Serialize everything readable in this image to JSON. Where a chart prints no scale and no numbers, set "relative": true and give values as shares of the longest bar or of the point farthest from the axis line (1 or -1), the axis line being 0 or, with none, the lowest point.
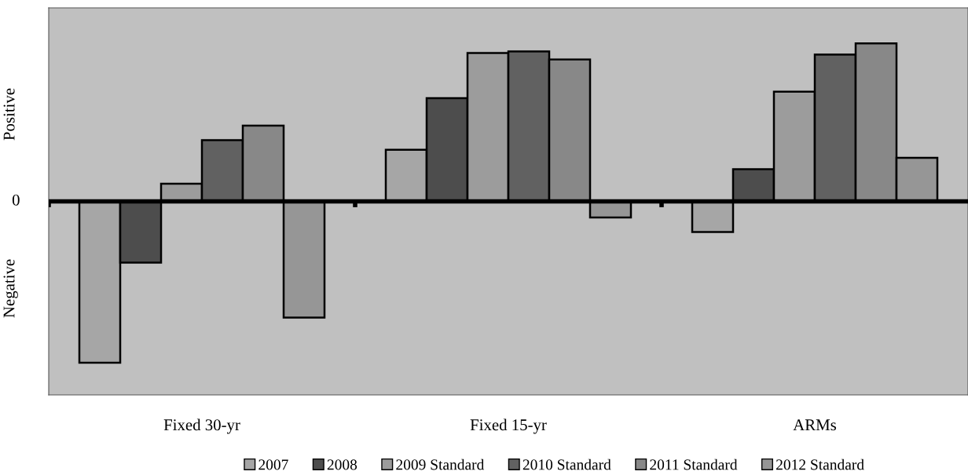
{
  "chart_data": {
    "type": "bar",
    "relative": true,
    "categories": [
      "Fixed 30-yr",
      "Fixed 15-yr",
      "ARMs"
    ],
    "series": [
      {
        "name": "2007",
        "color": "#a6a6a6",
        "values": [
          -1,
          0.32,
          -0.19
        ]
      },
      {
        "name": "2008",
        "color": "#4d4d4d",
        "values": [
          -0.38,
          0.64,
          0.2
        ]
      },
      {
        "name": "2009 Standard",
        "color": "#9c9c9c",
        "values": [
          0.11,
          0.92,
          0.68
        ]
      },
      {
        "name": "2010 Standard",
        "color": "#616161",
        "values": [
          0.38,
          0.93,
          0.91
        ]
      },
      {
        "name": "2011 Standard",
        "color": "#888888",
        "values": [
          0.47,
          0.88,
          0.98
        ]
      },
      {
        "name": "2012 Standard",
        "color": "#969696",
        "values": [
          -0.72,
          -0.1,
          0.27
        ]
      }
    ],
    "annotations": [
      "Positive",
      "0",
      "Negative"
    ],
    "legend": "bottom",
    "grid": false
  }
}
